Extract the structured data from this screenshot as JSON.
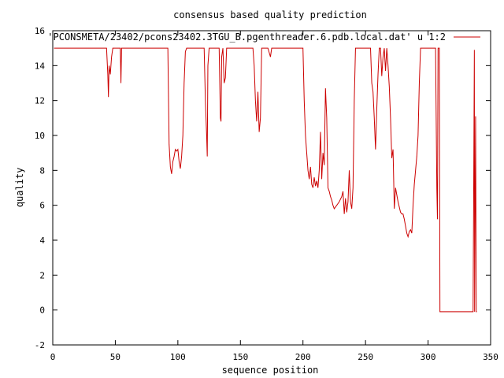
{
  "chart_data": {
    "type": "line",
    "title": "consensus based quality prediction",
    "xlabel": "sequence position",
    "ylabel": "quality",
    "xlim": [
      0,
      350
    ],
    "ylim": [
      -2,
      16
    ],
    "x_ticks": [
      0,
      50,
      100,
      150,
      200,
      250,
      300,
      350
    ],
    "y_ticks": [
      -2,
      0,
      2,
      4,
      6,
      8,
      10,
      12,
      14,
      16
    ],
    "grid": false,
    "legend_position": "top-right",
    "series": [
      {
        "name": "'PCONSMETA/23402/pcons23402.3TGU_B.pgenthreader.6.pdb.local.dat' u 1:2",
        "color": "#cc0000",
        "points": [
          [
            1,
            15
          ],
          [
            43,
            15
          ],
          [
            44,
            13.5
          ],
          [
            44.5,
            12.2
          ],
          [
            45,
            14
          ],
          [
            46,
            13.5
          ],
          [
            47,
            14.5
          ],
          [
            48,
            15
          ],
          [
            54,
            15
          ],
          [
            54.5,
            13
          ],
          [
            55,
            15
          ],
          [
            92,
            15
          ],
          [
            93,
            9.5
          ],
          [
            94,
            8.2
          ],
          [
            95,
            7.8
          ],
          [
            96,
            8.5
          ],
          [
            97,
            8.8
          ],
          [
            98,
            9.2
          ],
          [
            99,
            9.1
          ],
          [
            100,
            9.2
          ],
          [
            101,
            8.5
          ],
          [
            102,
            8.1
          ],
          [
            103,
            8.8
          ],
          [
            104,
            10
          ],
          [
            105,
            13
          ],
          [
            106,
            14.8
          ],
          [
            107,
            15
          ],
          [
            121,
            15
          ],
          [
            122,
            12
          ],
          [
            123,
            10
          ],
          [
            123.5,
            8.8
          ],
          [
            124,
            14
          ],
          [
            125,
            15
          ],
          [
            133,
            15
          ],
          [
            134,
            11
          ],
          [
            134.5,
            10.8
          ],
          [
            135,
            14.5
          ],
          [
            136,
            15
          ],
          [
            137,
            13
          ],
          [
            138,
            13.3
          ],
          [
            139,
            15
          ],
          [
            160,
            15
          ],
          [
            161,
            14
          ],
          [
            162,
            12
          ],
          [
            163,
            10.8
          ],
          [
            164,
            12.5
          ],
          [
            165,
            10.2
          ],
          [
            166,
            11
          ],
          [
            167,
            15
          ],
          [
            172,
            15
          ],
          [
            174,
            14.5
          ],
          [
            175,
            15
          ],
          [
            200,
            15
          ],
          [
            201,
            12
          ],
          [
            202,
            10
          ],
          [
            203,
            9
          ],
          [
            204,
            8
          ],
          [
            205,
            7.5
          ],
          [
            206,
            8.2
          ],
          [
            207,
            7.2
          ],
          [
            208,
            7
          ],
          [
            209,
            7.6
          ],
          [
            210,
            7.1
          ],
          [
            211,
            7.4
          ],
          [
            212,
            7
          ],
          [
            213,
            8
          ],
          [
            214,
            10.2
          ],
          [
            215,
            7.5
          ],
          [
            216,
            9
          ],
          [
            217,
            8.3
          ],
          [
            218,
            12.7
          ],
          [
            219,
            11
          ],
          [
            220,
            7
          ],
          [
            221,
            6.8
          ],
          [
            222,
            6.5
          ],
          [
            223,
            6.3
          ],
          [
            224,
            6
          ],
          [
            225,
            5.8
          ],
          [
            227,
            6
          ],
          [
            229,
            6.2
          ],
          [
            231,
            6.5
          ],
          [
            232,
            6.8
          ],
          [
            233,
            5.5
          ],
          [
            234,
            6.4
          ],
          [
            235,
            5.6
          ],
          [
            236,
            6.2
          ],
          [
            237,
            8
          ],
          [
            238,
            6.2
          ],
          [
            239,
            5.8
          ],
          [
            240,
            7
          ],
          [
            241,
            12
          ],
          [
            242,
            15
          ],
          [
            254,
            15
          ],
          [
            255,
            13
          ],
          [
            256,
            12.5
          ],
          [
            257,
            11
          ],
          [
            258,
            9.2
          ],
          [
            259,
            11.5
          ],
          [
            260,
            13.5
          ],
          [
            261,
            15
          ],
          [
            262,
            15
          ],
          [
            263,
            13.4
          ],
          [
            264,
            14.5
          ],
          [
            265,
            15
          ],
          [
            266,
            13.7
          ],
          [
            267,
            15
          ],
          [
            268,
            14
          ],
          [
            269,
            12.8
          ],
          [
            270,
            11
          ],
          [
            271,
            8.7
          ],
          [
            272,
            9.2
          ],
          [
            273,
            5.8
          ],
          [
            274,
            7
          ],
          [
            275,
            6.6
          ],
          [
            276,
            6.2
          ],
          [
            277,
            5.9
          ],
          [
            278,
            5.6
          ],
          [
            279,
            5.5
          ],
          [
            280,
            5.5
          ],
          [
            281,
            5.2
          ],
          [
            282,
            4.8
          ],
          [
            283,
            4.4
          ],
          [
            284,
            4.2
          ],
          [
            285,
            4.5
          ],
          [
            286,
            4.6
          ],
          [
            287,
            4.4
          ],
          [
            288,
            6
          ],
          [
            289,
            7.2
          ],
          [
            290,
            8
          ],
          [
            291,
            8.8
          ],
          [
            292,
            10
          ],
          [
            293,
            13
          ],
          [
            294,
            15
          ],
          [
            306,
            15
          ],
          [
            307,
            7
          ],
          [
            307.5,
            5.2
          ],
          [
            308,
            15
          ],
          [
            309,
            15
          ],
          [
            309.5,
            -0.1
          ],
          [
            336,
            -0.1
          ],
          [
            337,
            14.9
          ],
          [
            337.2,
            -0.1
          ],
          [
            338,
            11.1
          ],
          [
            338.5,
            -0.1
          ],
          [
            339,
            -0.1
          ]
        ]
      }
    ]
  }
}
